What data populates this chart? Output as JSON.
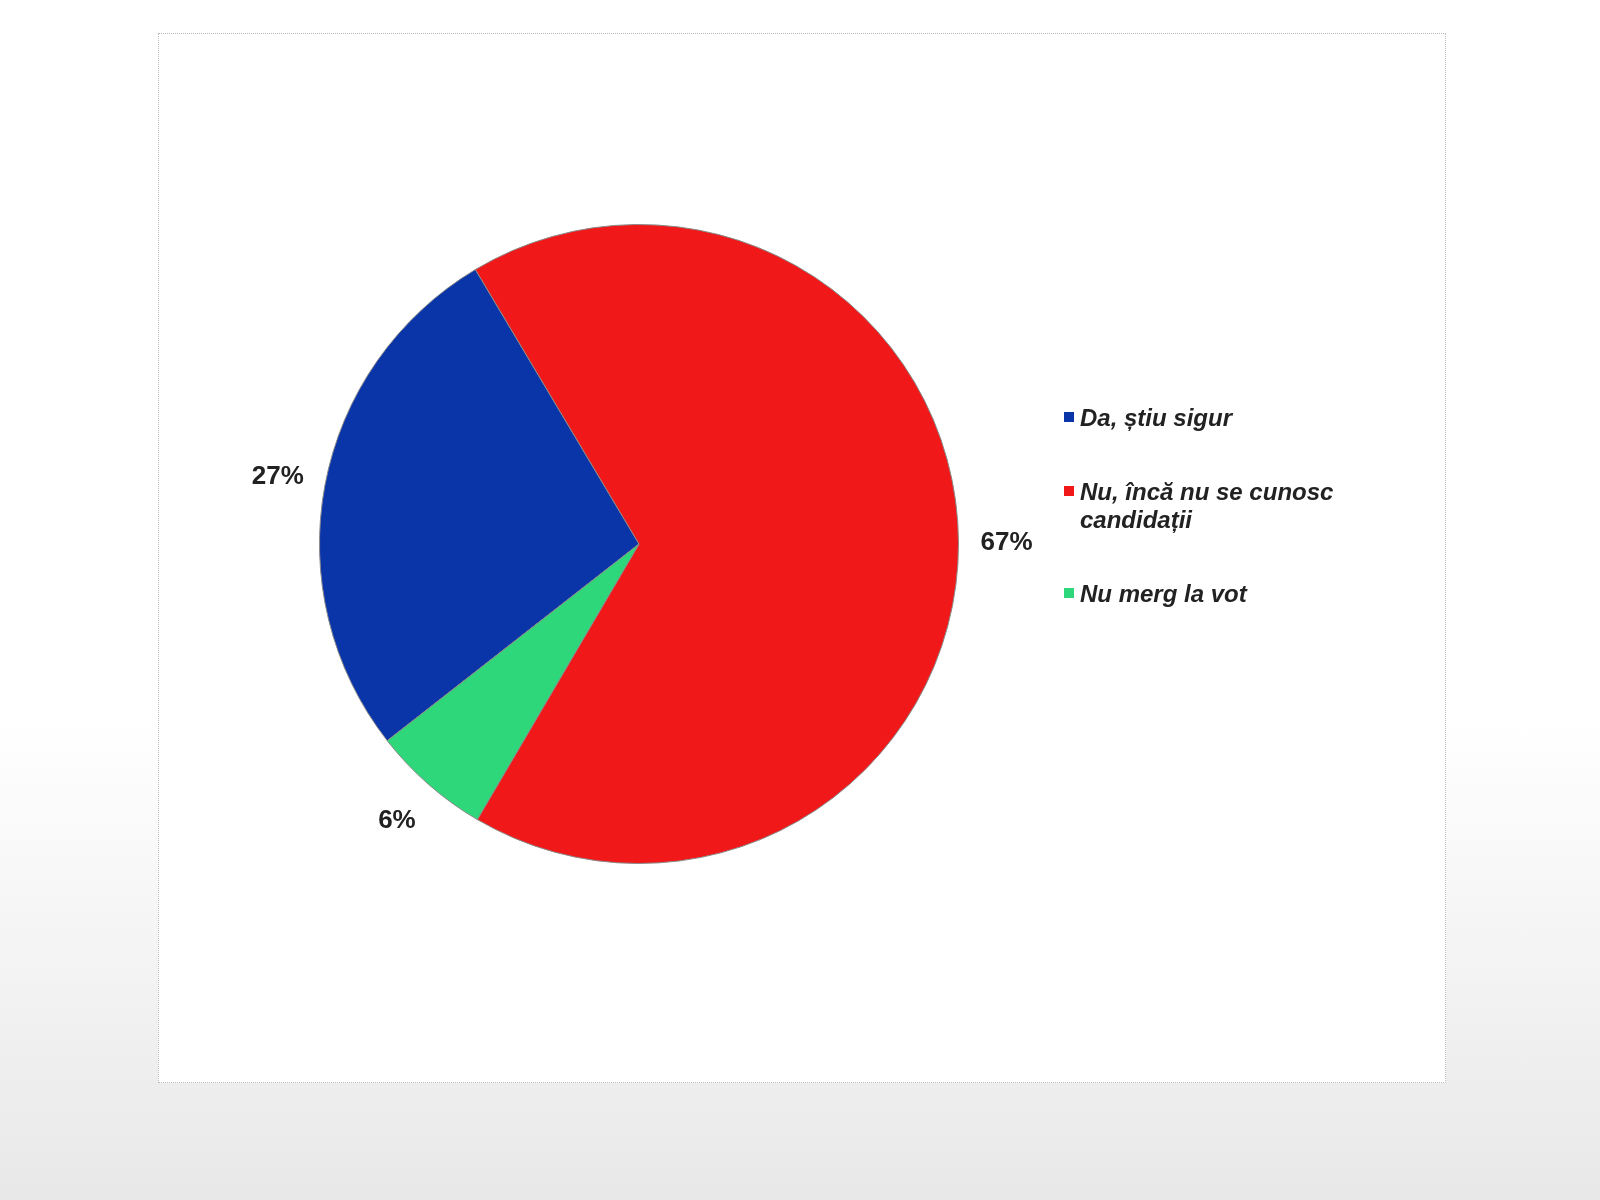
{
  "chart_data": {
    "type": "pie",
    "categories": [
      "Da, știu sigur",
      "Nu, încă nu se cunosc candidații",
      "Nu merg la vot"
    ],
    "values": [
      27,
      67,
      6
    ],
    "colors": [
      "#0a35a8",
      "#f01818",
      "#2ed87a"
    ],
    "value_labels": [
      "27%",
      "67%",
      "6%"
    ],
    "legend": "right"
  }
}
